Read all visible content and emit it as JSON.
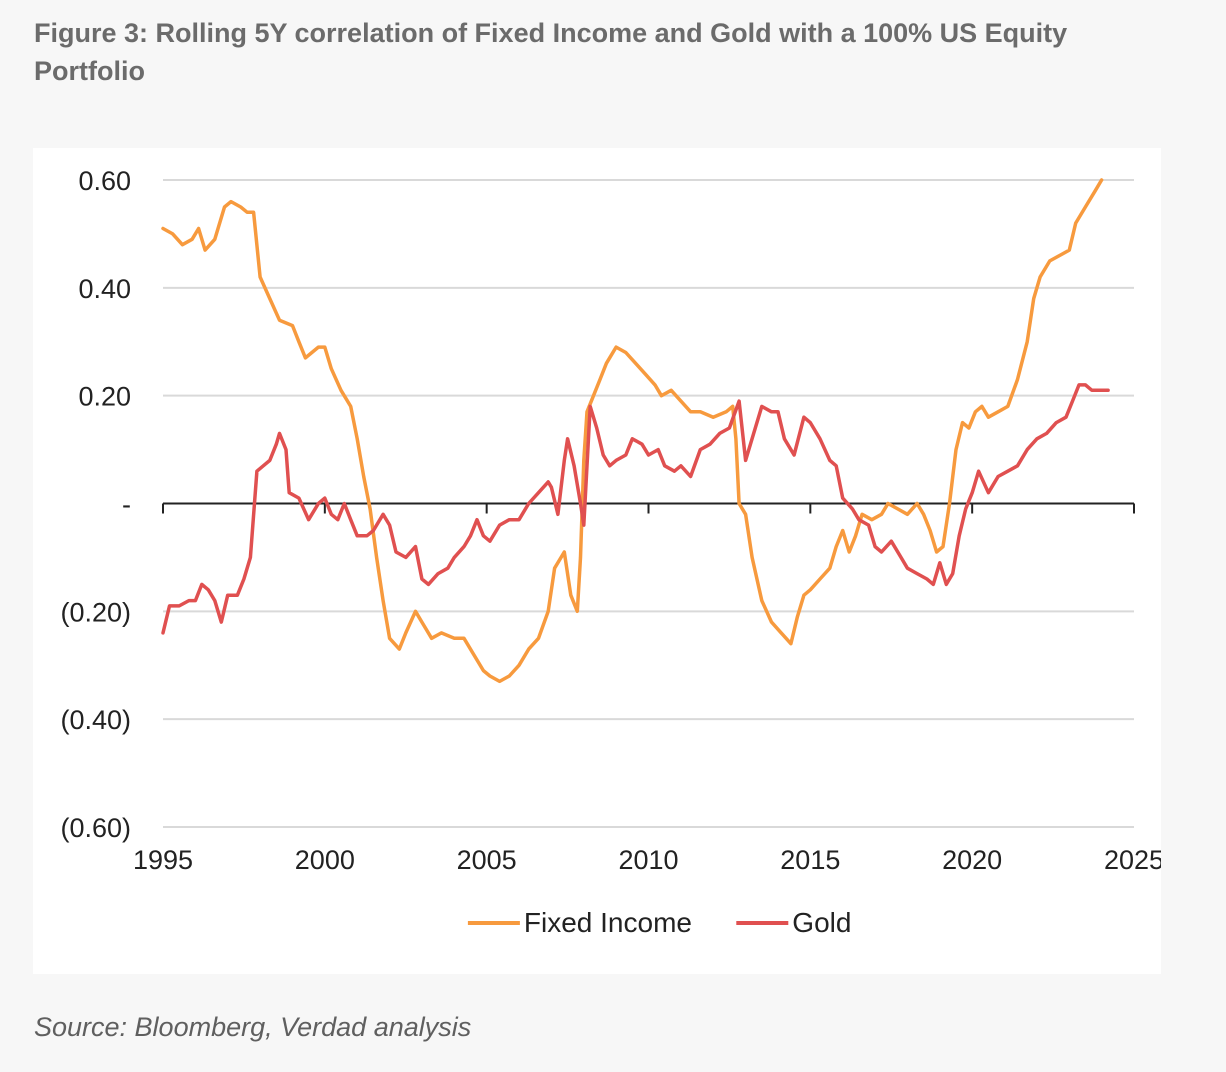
{
  "figure": {
    "title": "Figure 3: Rolling 5Y correlation of Fixed Income and Gold with a 100% US Equity Portfolio",
    "source": "Source: Bloomberg, Verdad analysis"
  },
  "chart_data": {
    "type": "line",
    "title": "Figure 3: Rolling 5Y correlation of Fixed Income and Gold with a 100% US Equity Portfolio",
    "xlabel": "",
    "ylabel": "",
    "xlim": [
      1995,
      2025
    ],
    "ylim": [
      -0.6,
      0.6
    ],
    "x_ticks": [
      1995,
      2000,
      2005,
      2010,
      2015,
      2020,
      2025
    ],
    "x_tick_labels": [
      "1995",
      "2000",
      "2005",
      "2010",
      "2015",
      "2020",
      "2025"
    ],
    "y_ticks": [
      0.6,
      0.4,
      0.2,
      0,
      -0.2,
      -0.4,
      -0.6
    ],
    "y_tick_labels": [
      "0.60",
      "0.40",
      "0.20",
      "-",
      "(0.20)",
      "(0.40)",
      "(0.60)"
    ],
    "grid": "horizontal",
    "legend_position": "bottom-center",
    "series": [
      {
        "name": "Fixed Income",
        "color": "#f79a3e",
        "points": [
          [
            1995.0,
            0.51
          ],
          [
            1995.3,
            0.5
          ],
          [
            1995.6,
            0.48
          ],
          [
            1995.9,
            0.49
          ],
          [
            1996.1,
            0.51
          ],
          [
            1996.3,
            0.47
          ],
          [
            1996.6,
            0.49
          ],
          [
            1996.9,
            0.55
          ],
          [
            1997.1,
            0.56
          ],
          [
            1997.4,
            0.55
          ],
          [
            1997.6,
            0.54
          ],
          [
            1997.8,
            0.54
          ],
          [
            1998.0,
            0.42
          ],
          [
            1998.3,
            0.38
          ],
          [
            1998.6,
            0.34
          ],
          [
            1999.0,
            0.33
          ],
          [
            1999.2,
            0.3
          ],
          [
            1999.4,
            0.27
          ],
          [
            1999.6,
            0.28
          ],
          [
            1999.8,
            0.29
          ],
          [
            2000.0,
            0.29
          ],
          [
            2000.2,
            0.25
          ],
          [
            2000.5,
            0.21
          ],
          [
            2000.8,
            0.18
          ],
          [
            2001.0,
            0.12
          ],
          [
            2001.2,
            0.05
          ],
          [
            2001.4,
            -0.01
          ],
          [
            2001.6,
            -0.1
          ],
          [
            2001.8,
            -0.18
          ],
          [
            2002.0,
            -0.25
          ],
          [
            2002.3,
            -0.27
          ],
          [
            2002.5,
            -0.24
          ],
          [
            2002.8,
            -0.2
          ],
          [
            2003.0,
            -0.22
          ],
          [
            2003.3,
            -0.25
          ],
          [
            2003.6,
            -0.24
          ],
          [
            2004.0,
            -0.25
          ],
          [
            2004.3,
            -0.25
          ],
          [
            2004.6,
            -0.28
          ],
          [
            2004.9,
            -0.31
          ],
          [
            2005.1,
            -0.32
          ],
          [
            2005.4,
            -0.33
          ],
          [
            2005.7,
            -0.32
          ],
          [
            2006.0,
            -0.3
          ],
          [
            2006.3,
            -0.27
          ],
          [
            2006.6,
            -0.25
          ],
          [
            2006.9,
            -0.2
          ],
          [
            2007.1,
            -0.12
          ],
          [
            2007.4,
            -0.09
          ],
          [
            2007.6,
            -0.17
          ],
          [
            2007.8,
            -0.2
          ],
          [
            2007.9,
            -0.1
          ],
          [
            2008.0,
            0.08
          ],
          [
            2008.1,
            0.17
          ],
          [
            2008.3,
            0.2
          ],
          [
            2008.5,
            0.23
          ],
          [
            2008.7,
            0.26
          ],
          [
            2009.0,
            0.29
          ],
          [
            2009.3,
            0.28
          ],
          [
            2009.6,
            0.26
          ],
          [
            2009.9,
            0.24
          ],
          [
            2010.2,
            0.22
          ],
          [
            2010.4,
            0.2
          ],
          [
            2010.7,
            0.21
          ],
          [
            2011.0,
            0.19
          ],
          [
            2011.3,
            0.17
          ],
          [
            2011.6,
            0.17
          ],
          [
            2012.0,
            0.16
          ],
          [
            2012.4,
            0.17
          ],
          [
            2012.6,
            0.18
          ],
          [
            2012.7,
            0.12
          ],
          [
            2012.8,
            0.0
          ],
          [
            2013.0,
            -0.02
          ],
          [
            2013.2,
            -0.1
          ],
          [
            2013.5,
            -0.18
          ],
          [
            2013.8,
            -0.22
          ],
          [
            2014.1,
            -0.24
          ],
          [
            2014.4,
            -0.26
          ],
          [
            2014.6,
            -0.21
          ],
          [
            2014.8,
            -0.17
          ],
          [
            2015.0,
            -0.16
          ],
          [
            2015.3,
            -0.14
          ],
          [
            2015.6,
            -0.12
          ],
          [
            2015.8,
            -0.08
          ],
          [
            2016.0,
            -0.05
          ],
          [
            2016.2,
            -0.09
          ],
          [
            2016.4,
            -0.06
          ],
          [
            2016.6,
            -0.02
          ],
          [
            2016.9,
            -0.03
          ],
          [
            2017.2,
            -0.02
          ],
          [
            2017.4,
            0.0
          ],
          [
            2017.7,
            -0.01
          ],
          [
            2018.0,
            -0.02
          ],
          [
            2018.3,
            0.0
          ],
          [
            2018.5,
            -0.02
          ],
          [
            2018.7,
            -0.05
          ],
          [
            2018.9,
            -0.09
          ],
          [
            2019.1,
            -0.08
          ],
          [
            2019.3,
            0.0
          ],
          [
            2019.5,
            0.1
          ],
          [
            2019.7,
            0.15
          ],
          [
            2019.9,
            0.14
          ],
          [
            2020.1,
            0.17
          ],
          [
            2020.3,
            0.18
          ],
          [
            2020.5,
            0.16
          ],
          [
            2020.8,
            0.17
          ],
          [
            2021.1,
            0.18
          ],
          [
            2021.4,
            0.23
          ],
          [
            2021.7,
            0.3
          ],
          [
            2021.9,
            0.38
          ],
          [
            2022.1,
            0.42
          ],
          [
            2022.4,
            0.45
          ],
          [
            2022.7,
            0.46
          ],
          [
            2023.0,
            0.47
          ],
          [
            2023.2,
            0.52
          ],
          [
            2023.5,
            0.55
          ],
          [
            2023.8,
            0.58
          ],
          [
            2024.0,
            0.6
          ]
        ]
      },
      {
        "name": "Gold",
        "color": "#e05050",
        "points": [
          [
            1995.0,
            -0.24
          ],
          [
            1995.2,
            -0.19
          ],
          [
            1995.5,
            -0.19
          ],
          [
            1995.8,
            -0.18
          ],
          [
            1996.0,
            -0.18
          ],
          [
            1996.2,
            -0.15
          ],
          [
            1996.4,
            -0.16
          ],
          [
            1996.6,
            -0.18
          ],
          [
            1996.8,
            -0.22
          ],
          [
            1997.0,
            -0.17
          ],
          [
            1997.3,
            -0.17
          ],
          [
            1997.5,
            -0.14
          ],
          [
            1997.7,
            -0.1
          ],
          [
            1997.9,
            0.06
          ],
          [
            1998.1,
            0.07
          ],
          [
            1998.3,
            0.08
          ],
          [
            1998.5,
            0.11
          ],
          [
            1998.6,
            0.13
          ],
          [
            1998.8,
            0.1
          ],
          [
            1998.9,
            0.02
          ],
          [
            1999.2,
            0.01
          ],
          [
            1999.5,
            -0.03
          ],
          [
            1999.8,
            0.0
          ],
          [
            2000.0,
            0.01
          ],
          [
            2000.2,
            -0.02
          ],
          [
            2000.4,
            -0.03
          ],
          [
            2000.6,
            0.0
          ],
          [
            2000.8,
            -0.03
          ],
          [
            2001.0,
            -0.06
          ],
          [
            2001.3,
            -0.06
          ],
          [
            2001.5,
            -0.05
          ],
          [
            2001.8,
            -0.02
          ],
          [
            2002.0,
            -0.04
          ],
          [
            2002.2,
            -0.09
          ],
          [
            2002.5,
            -0.1
          ],
          [
            2002.8,
            -0.08
          ],
          [
            2003.0,
            -0.14
          ],
          [
            2003.2,
            -0.15
          ],
          [
            2003.5,
            -0.13
          ],
          [
            2003.8,
            -0.12
          ],
          [
            2004.0,
            -0.1
          ],
          [
            2004.3,
            -0.08
          ],
          [
            2004.5,
            -0.06
          ],
          [
            2004.7,
            -0.03
          ],
          [
            2004.9,
            -0.06
          ],
          [
            2005.1,
            -0.07
          ],
          [
            2005.4,
            -0.04
          ],
          [
            2005.7,
            -0.03
          ],
          [
            2006.0,
            -0.03
          ],
          [
            2006.3,
            0.0
          ],
          [
            2006.6,
            0.02
          ],
          [
            2006.9,
            0.04
          ],
          [
            2007.0,
            0.03
          ],
          [
            2007.2,
            -0.02
          ],
          [
            2007.4,
            0.08
          ],
          [
            2007.5,
            0.12
          ],
          [
            2007.7,
            0.07
          ],
          [
            2007.9,
            0.0
          ],
          [
            2008.0,
            -0.04
          ],
          [
            2008.2,
            0.18
          ],
          [
            2008.4,
            0.14
          ],
          [
            2008.6,
            0.09
          ],
          [
            2008.8,
            0.07
          ],
          [
            2009.0,
            0.08
          ],
          [
            2009.3,
            0.09
          ],
          [
            2009.5,
            0.12
          ],
          [
            2009.8,
            0.11
          ],
          [
            2010.0,
            0.09
          ],
          [
            2010.3,
            0.1
          ],
          [
            2010.5,
            0.07
          ],
          [
            2010.8,
            0.06
          ],
          [
            2011.0,
            0.07
          ],
          [
            2011.3,
            0.05
          ],
          [
            2011.6,
            0.1
          ],
          [
            2011.9,
            0.11
          ],
          [
            2012.2,
            0.13
          ],
          [
            2012.5,
            0.14
          ],
          [
            2012.8,
            0.19
          ],
          [
            2013.0,
            0.08
          ],
          [
            2013.3,
            0.14
          ],
          [
            2013.5,
            0.18
          ],
          [
            2013.8,
            0.17
          ],
          [
            2014.0,
            0.17
          ],
          [
            2014.2,
            0.12
          ],
          [
            2014.5,
            0.09
          ],
          [
            2014.8,
            0.16
          ],
          [
            2015.0,
            0.15
          ],
          [
            2015.3,
            0.12
          ],
          [
            2015.6,
            0.08
          ],
          [
            2015.8,
            0.07
          ],
          [
            2016.0,
            0.01
          ],
          [
            2016.3,
            -0.01
          ],
          [
            2016.5,
            -0.03
          ],
          [
            2016.8,
            -0.04
          ],
          [
            2017.0,
            -0.08
          ],
          [
            2017.2,
            -0.09
          ],
          [
            2017.5,
            -0.07
          ],
          [
            2017.8,
            -0.1
          ],
          [
            2018.0,
            -0.12
          ],
          [
            2018.3,
            -0.13
          ],
          [
            2018.6,
            -0.14
          ],
          [
            2018.8,
            -0.15
          ],
          [
            2019.0,
            -0.11
          ],
          [
            2019.2,
            -0.15
          ],
          [
            2019.4,
            -0.13
          ],
          [
            2019.6,
            -0.06
          ],
          [
            2019.8,
            -0.01
          ],
          [
            2020.0,
            0.02
          ],
          [
            2020.2,
            0.06
          ],
          [
            2020.5,
            0.02
          ],
          [
            2020.8,
            0.05
          ],
          [
            2021.1,
            0.06
          ],
          [
            2021.4,
            0.07
          ],
          [
            2021.7,
            0.1
          ],
          [
            2022.0,
            0.12
          ],
          [
            2022.3,
            0.13
          ],
          [
            2022.6,
            0.15
          ],
          [
            2022.9,
            0.16
          ],
          [
            2023.1,
            0.19
          ],
          [
            2023.3,
            0.22
          ],
          [
            2023.5,
            0.22
          ],
          [
            2023.7,
            0.21
          ],
          [
            2023.9,
            0.21
          ],
          [
            2024.2,
            0.21
          ]
        ]
      }
    ]
  }
}
